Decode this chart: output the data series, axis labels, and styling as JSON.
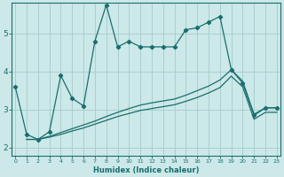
{
  "xlabel": "Humidex (Indice chaleur)",
  "ylabel": "",
  "bg_color": "#cce8e8",
  "grid_color": "#aacfcf",
  "line_color": "#1a6e6e",
  "x_ticks": [
    0,
    1,
    2,
    3,
    4,
    5,
    6,
    7,
    8,
    9,
    10,
    11,
    12,
    13,
    14,
    15,
    16,
    17,
    18,
    19,
    20,
    21,
    22,
    23
  ],
  "y_ticks": [
    2,
    3,
    4,
    5
  ],
  "ylim": [
    1.8,
    5.8
  ],
  "xlim": [
    -0.3,
    23.3
  ],
  "series1_x": [
    0,
    1,
    2,
    3,
    4,
    5,
    6,
    7,
    8,
    9,
    10,
    11,
    12,
    13,
    14,
    15,
    16,
    17,
    18,
    19,
    20,
    21,
    22,
    23
  ],
  "series1_y": [
    3.6,
    2.35,
    2.22,
    2.42,
    3.9,
    3.3,
    3.1,
    4.8,
    5.75,
    4.65,
    4.8,
    4.65,
    4.65,
    4.65,
    4.65,
    5.1,
    5.15,
    5.3,
    5.45,
    4.05,
    3.7,
    2.85,
    3.05,
    3.05
  ],
  "series2_x": [
    1,
    2,
    3,
    4,
    5,
    6,
    7,
    8,
    9,
    10,
    11,
    12,
    13,
    14,
    15,
    16,
    17,
    18,
    19,
    20,
    21,
    22,
    23
  ],
  "series2_y": [
    2.22,
    2.22,
    2.3,
    2.4,
    2.5,
    2.6,
    2.7,
    2.82,
    2.93,
    3.03,
    3.12,
    3.18,
    3.23,
    3.28,
    3.38,
    3.5,
    3.62,
    3.78,
    4.05,
    3.75,
    2.88,
    3.05,
    3.05
  ],
  "series3_x": [
    1,
    2,
    3,
    4,
    5,
    6,
    7,
    8,
    9,
    10,
    11,
    12,
    13,
    14,
    15,
    16,
    17,
    18,
    19,
    20,
    21,
    22,
    23
  ],
  "series3_y": [
    2.22,
    2.22,
    2.28,
    2.35,
    2.44,
    2.52,
    2.62,
    2.72,
    2.82,
    2.9,
    2.98,
    3.03,
    3.08,
    3.13,
    3.22,
    3.32,
    3.44,
    3.58,
    3.88,
    3.6,
    2.75,
    2.93,
    2.93
  ]
}
